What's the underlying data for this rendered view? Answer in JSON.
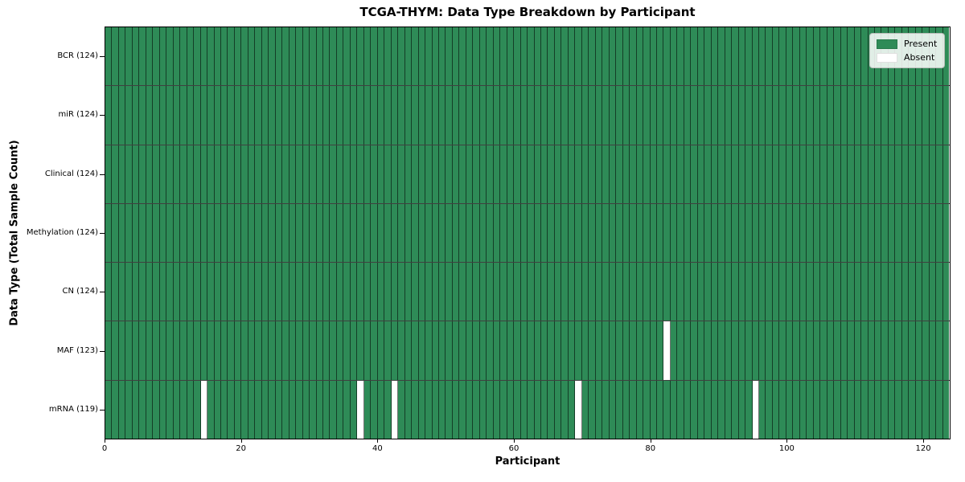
{
  "chart_data": {
    "type": "heatmap",
    "title": "TCGA-THYM: Data Type Breakdown by Participant",
    "xlabel": "Participant",
    "ylabel": "Data Type (Total Sample Count)",
    "x_ticks": [
      0,
      20,
      40,
      60,
      80,
      100,
      120
    ],
    "xlim": [
      0,
      124
    ],
    "n_participants": 124,
    "grid": "cell-borders",
    "legend_position": "upper right",
    "rows": [
      {
        "label": "BCR (124)",
        "data_type": "BCR",
        "present_count": 124,
        "absent_participants": []
      },
      {
        "label": "miR (124)",
        "data_type": "miR",
        "present_count": 124,
        "absent_participants": []
      },
      {
        "label": "Clinical (124)",
        "data_type": "Clinical",
        "present_count": 124,
        "absent_participants": []
      },
      {
        "label": "Methylation (124)",
        "data_type": "Methylation",
        "present_count": 124,
        "absent_participants": []
      },
      {
        "label": "CN (124)",
        "data_type": "CN",
        "present_count": 124,
        "absent_participants": []
      },
      {
        "label": "MAF (123)",
        "data_type": "MAF",
        "present_count": 123,
        "absent_participants": [
          82
        ]
      },
      {
        "label": "mRNA (119)",
        "data_type": "mRNA",
        "present_count": 119,
        "absent_participants": [
          14,
          37,
          42,
          69,
          95
        ]
      }
    ],
    "legend": [
      {
        "label": "Present",
        "color": "#2e8b57"
      },
      {
        "label": "Absent",
        "color": "#ffffff"
      }
    ],
    "colors": {
      "present": "#2e8b57",
      "absent": "#ffffff",
      "cell_edge": "rgba(0,0,0,0.55)",
      "row_edge": "rgba(0,0,0,0.75)",
      "spine": "#000000",
      "background": "#ffffff"
    }
  }
}
